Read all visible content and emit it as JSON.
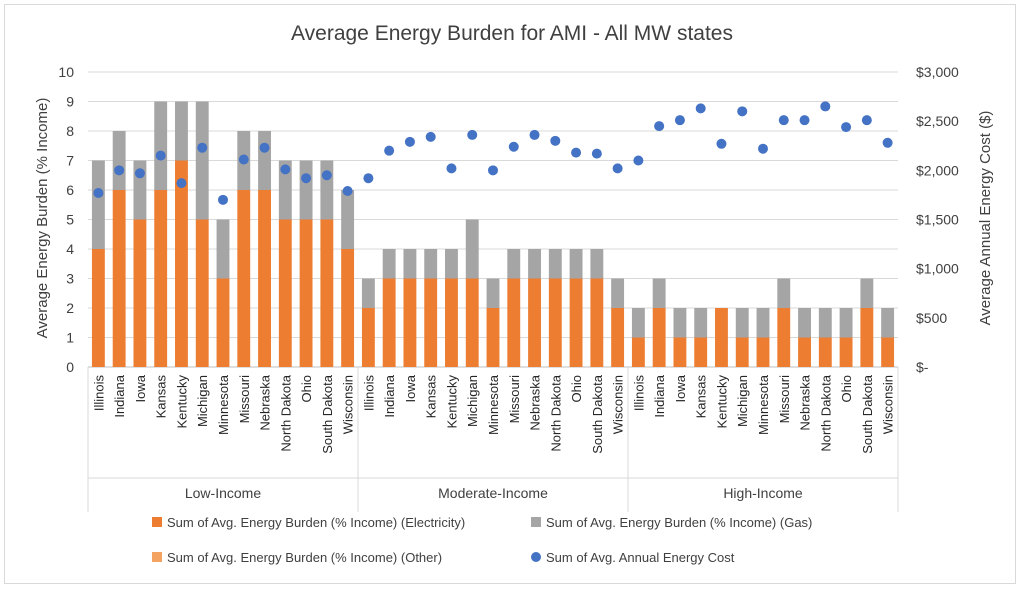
{
  "chart_data": {
    "type": "bar",
    "title": "Average Energy Burden for AMI - All MW states",
    "ylabel": "Average Energy Burden (% Income)",
    "y2label": "Average Annual Energy Cost ($)",
    "ylim": [
      0,
      10
    ],
    "y2lim": [
      0,
      3000
    ],
    "yticks": [
      "0",
      "1",
      "2",
      "3",
      "4",
      "5",
      "6",
      "7",
      "8",
      "9",
      "10"
    ],
    "y2ticks": [
      "$-",
      "$500",
      "$1,000",
      "$1,500",
      "$2,000",
      "$2,500",
      "$3,000"
    ],
    "groups": [
      {
        "name": "Low-Income",
        "states": [
          "Illinois",
          "Indiana",
          "Iowa",
          "Kansas",
          "Kentucky",
          "Michigan",
          "Minnesota",
          "Missouri",
          "Nebraska",
          "North Dakota",
          "Ohio",
          "South Dakota",
          "Wisconsin"
        ],
        "electricity": [
          4,
          6,
          5,
          6,
          7,
          5,
          3,
          6,
          6,
          5,
          5,
          5,
          4
        ],
        "gas": [
          3,
          2,
          2,
          3,
          2,
          4,
          2,
          2,
          2,
          2,
          2,
          2,
          2
        ],
        "other": [
          0,
          0,
          0,
          0,
          0,
          0,
          0,
          0,
          0,
          0,
          0,
          0,
          0
        ],
        "cost": [
          1770,
          2000,
          1970,
          2150,
          1870,
          2230,
          1700,
          2110,
          2230,
          2010,
          1920,
          1950,
          1790
        ]
      },
      {
        "name": "Moderate-Income",
        "states": [
          "Illinois",
          "Indiana",
          "Iowa",
          "Kansas",
          "Kentucky",
          "Michigan",
          "Minnesota",
          "Missouri",
          "Nebraska",
          "North Dakota",
          "Ohio",
          "South Dakota",
          "Wisconsin"
        ],
        "electricity": [
          2,
          3,
          3,
          3,
          3,
          3,
          2,
          3,
          3,
          3,
          3,
          3,
          2
        ],
        "gas": [
          1,
          1,
          1,
          1,
          1,
          2,
          1,
          1,
          1,
          1,
          1,
          1,
          1
        ],
        "other": [
          0,
          0,
          0,
          0,
          0,
          0,
          0,
          0,
          0,
          0,
          0,
          0,
          0
        ],
        "cost": [
          1920,
          2200,
          2290,
          2340,
          2020,
          2360,
          2000,
          2240,
          2360,
          2300,
          2180,
          2170,
          2020
        ]
      },
      {
        "name": "High-Income",
        "states": [
          "Illinois",
          "Indiana",
          "Iowa",
          "Kansas",
          "Kentucky",
          "Michigan",
          "Minnesota",
          "Missouri",
          "Nebraska",
          "North Dakota",
          "Ohio",
          "South Dakota",
          "Wisconsin"
        ],
        "electricity": [
          1,
          2,
          1,
          1,
          2,
          1,
          1,
          2,
          1,
          1,
          1,
          2,
          1
        ],
        "gas": [
          1,
          1,
          1,
          1,
          0,
          1,
          1,
          1,
          1,
          1,
          1,
          1,
          1
        ],
        "other": [
          0,
          0,
          0,
          0,
          0,
          0,
          0,
          0,
          0,
          0,
          0,
          0,
          0
        ],
        "cost": [
          2100,
          2450,
          2510,
          2630,
          2270,
          2600,
          2220,
          2510,
          2510,
          2650,
          2440,
          2510,
          2280
        ]
      }
    ],
    "series": [
      {
        "name": "Sum of Avg. Energy Burden (% Income) (Electricity)",
        "color": "#ed7d31",
        "type": "bar"
      },
      {
        "name": "Sum of Avg. Energy Burden (% Income) (Gas)",
        "color": "#a5a5a5",
        "type": "bar"
      },
      {
        "name": "Sum of Avg. Energy Burden (% Income) (Other)",
        "color": "#f4a460",
        "type": "bar"
      },
      {
        "name": "Sum of Avg. Annual Energy Cost",
        "color": "#4472c4",
        "type": "scatter"
      }
    ],
    "grid": true,
    "legend_position": "bottom"
  }
}
